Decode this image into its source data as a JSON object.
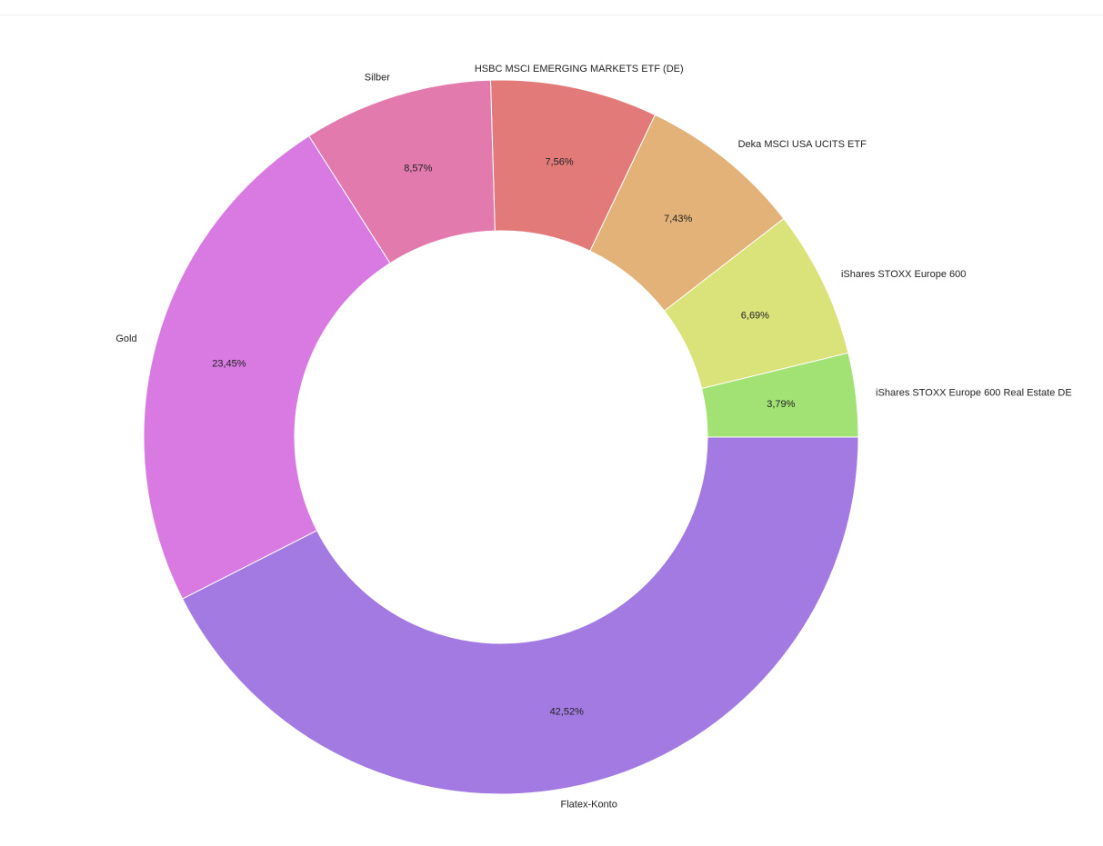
{
  "chart_data": {
    "type": "pie",
    "title": "",
    "legend": "none",
    "slices": [
      {
        "name": "iShares STOXX Europe 600 Real Estate DE",
        "value": 3.79,
        "label": "3,79%",
        "color": "#a2e274"
      },
      {
        "name": "iShares STOXX Europe 600",
        "value": 6.69,
        "label": "6,69%",
        "color": "#dae27a"
      },
      {
        "name": "Deka MSCI USA UCITS ETF",
        "value": 7.43,
        "label": "7,43%",
        "color": "#e2b278"
      },
      {
        "name": "HSBC MSCI EMERGING MARKETS ETF (DE)",
        "value": 7.56,
        "label": "7,56%",
        "color": "#e27a7a"
      },
      {
        "name": "Silber",
        "value": 8.57,
        "label": "8,57%",
        "color": "#e27aae"
      },
      {
        "name": "Gold",
        "value": 23.45,
        "label": "23,45%",
        "color": "#d97ae2"
      },
      {
        "name": "Flatex-Konto",
        "value": 42.52,
        "label": "42,52%",
        "color": "#a27ae2"
      }
    ]
  }
}
